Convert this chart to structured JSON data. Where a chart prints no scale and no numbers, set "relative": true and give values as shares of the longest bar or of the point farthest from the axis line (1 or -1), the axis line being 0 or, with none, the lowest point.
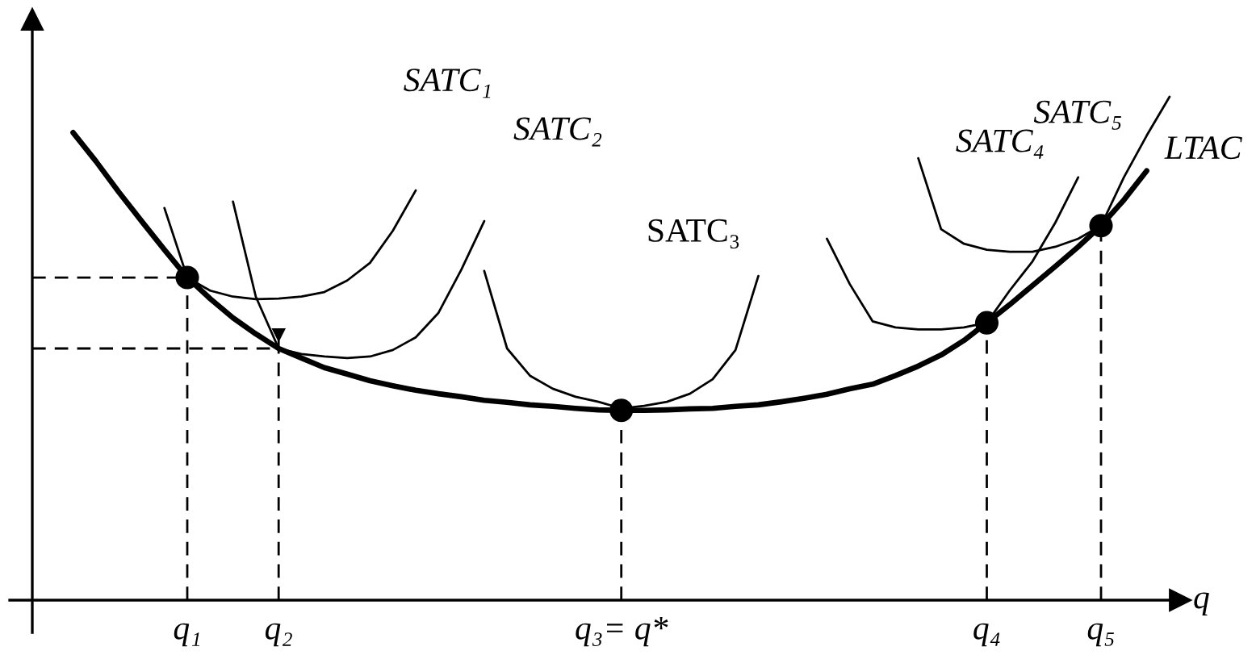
{
  "chart_data": {
    "type": "line",
    "relative": true,
    "xlabel": "q",
    "tick_labels": "x",
    "categories": [
      null,
      null,
      null,
      null,
      null,
      "q₁",
      null,
      null,
      null,
      "q₂",
      null,
      null,
      null,
      null,
      null,
      null,
      null,
      null,
      null,
      null,
      null,
      null,
      null,
      null,
      "q₃= q*",
      null,
      null,
      null,
      null,
      null,
      null,
      null,
      null,
      null,
      null,
      null,
      null,
      null,
      null,
      null,
      "q₄",
      null,
      null,
      null,
      null,
      "q₅",
      null,
      null,
      null
    ],
    "series": [
      {
        "name": "LTAC",
        "color": "#000000",
        "values": [
          0.929,
          0.872,
          0.811,
          0.753,
          0.696,
          0.641,
          0.599,
          0.561,
          0.529,
          0.5,
          0.481,
          0.462,
          0.449,
          0.436,
          0.426,
          0.417,
          0.41,
          0.404,
          0.397,
          0.393,
          0.388,
          0.385,
          0.381,
          0.378,
          0.377,
          0.377,
          0.378,
          0.38,
          0.381,
          0.385,
          0.388,
          0.394,
          0.401,
          0.409,
          0.42,
          0.429,
          0.446,
          0.465,
          0.487,
          0.516,
          0.551,
          0.587,
          0.625,
          0.663,
          0.702,
          0.744,
          0.795,
          0.853,
          null
        ]
      },
      {
        "name": "SATC₁",
        "color": "#000000",
        "values": [
          null,
          null,
          null,
          null,
          0.779,
          0.641,
          0.615,
          0.603,
          0.598,
          0.599,
          0.603,
          0.612,
          0.635,
          0.67,
          0.734,
          0.814,
          null,
          null,
          null,
          null,
          null,
          null,
          null,
          null,
          null,
          null,
          null,
          null,
          null,
          null,
          null,
          null,
          null,
          null,
          null,
          null,
          null,
          null,
          null,
          null,
          null,
          null,
          null,
          null,
          null,
          null,
          null,
          null,
          null
        ]
      },
      {
        "name": "SATC₂",
        "color": "#000000",
        "values": [
          null,
          null,
          null,
          null,
          null,
          null,
          null,
          0.792,
          0.603,
          0.5,
          0.489,
          0.484,
          0.481,
          0.484,
          0.497,
          0.522,
          0.571,
          0.657,
          0.753,
          null,
          null,
          null,
          null,
          null,
          null,
          null,
          null,
          null,
          null,
          null,
          null,
          null,
          null,
          null,
          null,
          null,
          null,
          null,
          null,
          null,
          null,
          null,
          null,
          null,
          null,
          null,
          null,
          null,
          null
        ]
      },
      {
        "name": "SATC₃",
        "color": "#000000",
        "values": [
          null,
          null,
          null,
          null,
          null,
          null,
          null,
          null,
          null,
          null,
          null,
          null,
          null,
          null,
          null,
          null,
          null,
          null,
          0.654,
          0.5,
          0.446,
          0.42,
          0.404,
          0.394,
          0.381,
          0.386,
          0.394,
          0.41,
          0.439,
          0.497,
          0.644,
          null,
          null,
          null,
          null,
          null,
          null,
          null,
          null,
          null,
          null,
          null,
          null,
          null,
          null,
          null,
          null,
          null,
          null
        ]
      },
      {
        "name": "SATC₄",
        "color": "#000000",
        "values": [
          null,
          null,
          null,
          null,
          null,
          null,
          null,
          null,
          null,
          null,
          null,
          null,
          null,
          null,
          null,
          null,
          null,
          null,
          null,
          null,
          null,
          null,
          null,
          null,
          null,
          null,
          null,
          null,
          null,
          null,
          null,
          null,
          null,
          0.718,
          0.628,
          0.554,
          0.542,
          0.538,
          0.538,
          0.542,
          0.551,
          0.615,
          0.673,
          0.75,
          0.84,
          null,
          null,
          null,
          null
        ]
      },
      {
        "name": "SATC₅",
        "color": "#000000",
        "values": [
          null,
          null,
          null,
          null,
          null,
          null,
          null,
          null,
          null,
          null,
          null,
          null,
          null,
          null,
          null,
          null,
          null,
          null,
          null,
          null,
          null,
          null,
          null,
          null,
          null,
          null,
          null,
          null,
          null,
          null,
          null,
          null,
          null,
          null,
          null,
          null,
          null,
          0.878,
          0.737,
          0.708,
          0.696,
          0.692,
          0.692,
          0.702,
          0.718,
          0.744,
          0.84,
          0.923,
          1.0
        ]
      },
      {
        "type": "lollipop",
        "marker": "circle",
        "line_style": "dashed",
        "color": "#000000",
        "values": [
          null,
          null,
          null,
          null,
          null,
          0.641,
          null,
          null,
          null,
          null,
          null,
          null,
          null,
          null,
          null,
          null,
          null,
          null,
          null,
          null,
          null,
          null,
          null,
          null,
          0.377,
          null,
          null,
          null,
          null,
          null,
          null,
          null,
          null,
          null,
          null,
          null,
          null,
          null,
          null,
          null,
          0.551,
          null,
          null,
          null,
          null,
          0.744,
          null,
          null,
          null
        ]
      },
      {
        "type": "lollipop",
        "marker": "triangle",
        "line_style": "dashed",
        "color": "#000000",
        "values": [
          null,
          null,
          null,
          null,
          null,
          null,
          null,
          null,
          null,
          0.526,
          null,
          null,
          null,
          null,
          null,
          null,
          null,
          null,
          null,
          null,
          null,
          null,
          null,
          null,
          null,
          null,
          null,
          null,
          null,
          null,
          null,
          null,
          null,
          null,
          null,
          null,
          null,
          null,
          null,
          null,
          null,
          null,
          null,
          null,
          null,
          null,
          null,
          null,
          null
        ]
      }
    ],
    "ref_lines": [
      {
        "axis": "y",
        "value": 0.641,
        "line_style": "dashed",
        "color": "#000000"
      },
      {
        "axis": "y",
        "value": 0.5,
        "line_style": "dashed",
        "color": "#000000"
      }
    ]
  }
}
